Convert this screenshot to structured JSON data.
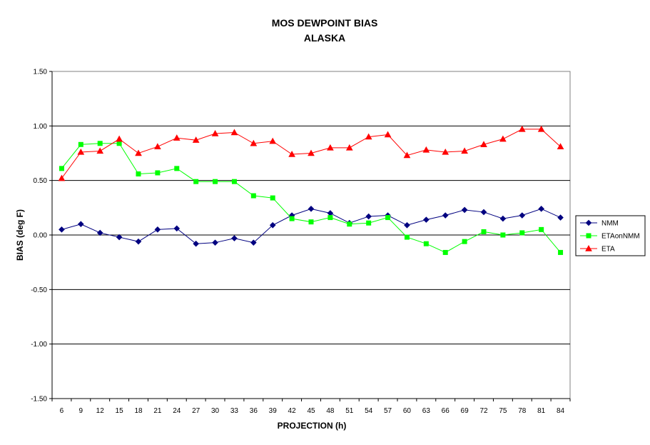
{
  "chart_data": {
    "type": "line",
    "title": "MOS DEWPOINT BIAS",
    "subtitle": "ALASKA",
    "xlabel": "PROJECTION (h)",
    "ylabel": "BIAS (deg F)",
    "ylim": [
      -1.5,
      1.5
    ],
    "yticks": [
      "1.50",
      "1.00",
      "0.50",
      "0.00",
      "-0.50",
      "-1.00",
      "-1.50"
    ],
    "ytick_values": [
      1.5,
      1.0,
      0.5,
      0.0,
      -0.5,
      -1.0,
      -1.5
    ],
    "grid": true,
    "legend_position": "right",
    "categories": [
      "6",
      "9",
      "12",
      "15",
      "18",
      "21",
      "24",
      "27",
      "30",
      "33",
      "36",
      "39",
      "42",
      "45",
      "48",
      "51",
      "54",
      "57",
      "60",
      "63",
      "66",
      "69",
      "72",
      "75",
      "78",
      "81",
      "84"
    ],
    "series": [
      {
        "name": "NMM",
        "color": "#000080",
        "marker": "diamond",
        "values": [
          0.05,
          0.1,
          0.02,
          -0.02,
          -0.06,
          0.05,
          0.06,
          -0.08,
          -0.07,
          -0.03,
          -0.07,
          0.09,
          0.18,
          0.24,
          0.2,
          0.11,
          0.17,
          0.18,
          0.09,
          0.14,
          0.18,
          0.23,
          0.21,
          0.15,
          0.18,
          0.24,
          0.16
        ]
      },
      {
        "name": "ETAonNMM",
        "color": "#00ff00",
        "marker": "square",
        "values": [
          0.61,
          0.83,
          0.84,
          0.84,
          0.56,
          0.57,
          0.61,
          0.49,
          0.49,
          0.49,
          0.36,
          0.34,
          0.15,
          0.12,
          0.16,
          0.1,
          0.11,
          0.16,
          -0.02,
          -0.08,
          -0.16,
          -0.06,
          0.03,
          0.0,
          0.02,
          0.05,
          -0.16
        ]
      },
      {
        "name": "ETA",
        "color": "#ff0000",
        "marker": "triangle",
        "values": [
          0.52,
          0.76,
          0.77,
          0.88,
          0.75,
          0.81,
          0.89,
          0.87,
          0.93,
          0.94,
          0.84,
          0.86,
          0.74,
          0.75,
          0.8,
          0.8,
          0.9,
          0.92,
          0.73,
          0.78,
          0.76,
          0.77,
          0.83,
          0.88,
          0.97,
          0.97,
          0.81
        ]
      }
    ]
  }
}
